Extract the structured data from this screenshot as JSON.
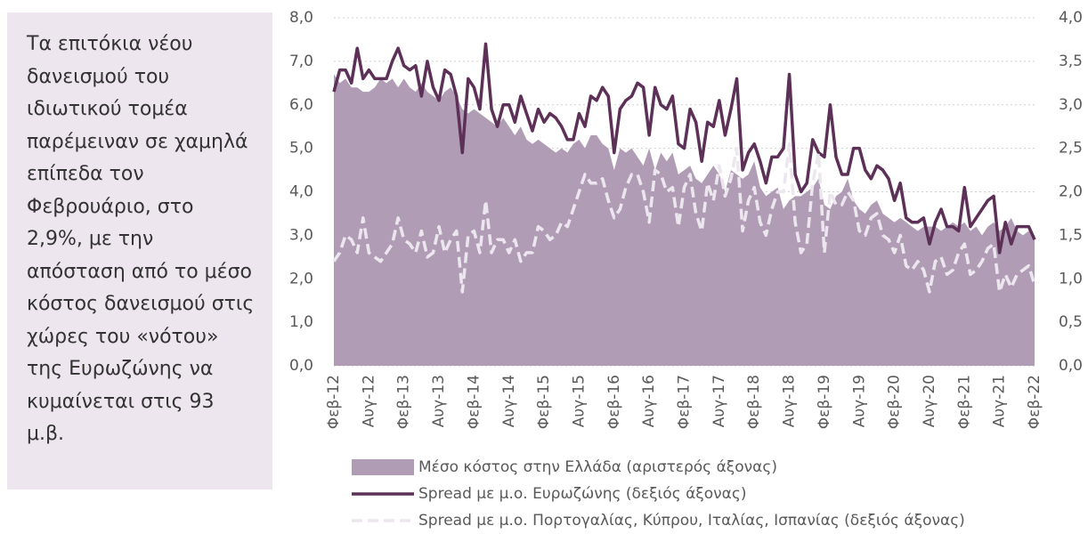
{
  "chart_data": {
    "type": "combo",
    "annotation": "Τα επιτόκια νέου δανεισμού του ιδιωτικού τομέα παρέμειναν σε χαμηλά επίπεδα τον Φεβρουάριο, στο 2,9%, με την απόσταση από το μέσο κόστος δανεισμού στις χώρες του «νότου» της Ευρωζώνης να κυμαίνεται στις 93 μ.β.",
    "categories": [
      "Φεβ-12",
      null,
      null,
      null,
      null,
      null,
      "Αυγ-12",
      null,
      null,
      null,
      null,
      null,
      "Φεβ-13",
      null,
      null,
      null,
      null,
      null,
      "Αυγ-13",
      null,
      null,
      null,
      null,
      null,
      "Φεβ-14",
      null,
      null,
      null,
      null,
      null,
      "Αυγ-14",
      null,
      null,
      null,
      null,
      null,
      "Φεβ-15",
      null,
      null,
      null,
      null,
      null,
      "Αυγ-15",
      null,
      null,
      null,
      null,
      null,
      "Φεβ-16",
      null,
      null,
      null,
      null,
      null,
      "Αυγ-16",
      null,
      null,
      null,
      null,
      null,
      "Φεβ-17",
      null,
      null,
      null,
      null,
      null,
      "Αυγ-17",
      null,
      null,
      null,
      null,
      null,
      "Φεβ-18",
      null,
      null,
      null,
      null,
      null,
      "Αυγ-18",
      null,
      null,
      null,
      null,
      null,
      "Φεβ-19",
      null,
      null,
      null,
      null,
      null,
      "Αυγ-19",
      null,
      null,
      null,
      null,
      null,
      "Φεβ-20",
      null,
      null,
      null,
      null,
      null,
      "Αυγ-20",
      null,
      null,
      null,
      null,
      null,
      "Φεβ-21",
      null,
      null,
      null,
      null,
      null,
      "Αυγ-21",
      null,
      null,
      null,
      null,
      null,
      "Φεβ-22"
    ],
    "series": [
      {
        "name": "Μέσο κόστος στην Ελλάδα (αριστερός άξονας)",
        "type": "area",
        "color": "#b09cb4",
        "values": [
          6.7,
          6.5,
          6.6,
          6.4,
          6.4,
          6.3,
          6.3,
          6.4,
          6.6,
          6.5,
          6.6,
          6.4,
          6.6,
          6.4,
          6.3,
          6.5,
          6.3,
          6.2,
          6.1,
          6.3,
          6.4,
          6.2,
          5.9,
          5.8,
          5.9,
          5.8,
          5.7,
          5.6,
          5.5,
          5.7,
          5.5,
          5.3,
          5.5,
          5.2,
          5.1,
          5.2,
          5.1,
          5.0,
          4.9,
          5.0,
          4.9,
          5.1,
          5.2,
          5.0,
          5.3,
          5.3,
          5.1,
          5.0,
          4.5,
          5.0,
          4.9,
          5.0,
          4.8,
          4.6,
          5.0,
          4.5,
          4.9,
          4.7,
          4.9,
          4.4,
          4.5,
          4.6,
          4.3,
          4.2,
          4.4,
          4.6,
          4.4,
          4.0,
          4.5,
          4.4,
          4.3,
          4.4,
          4.7,
          4.1,
          3.9,
          4.0,
          4.1,
          3.6,
          3.8,
          3.9,
          3.9,
          4.0,
          4.1,
          4.3,
          3.7,
          3.6,
          3.9,
          4.0,
          4.3,
          3.8,
          3.6,
          3.5,
          3.7,
          3.8,
          3.5,
          3.4,
          3.3,
          3.4,
          3.3,
          3.2,
          3.1,
          3.2,
          3.2,
          3.2,
          3.1,
          3.2,
          3.3,
          3.2,
          3.3,
          3.1,
          3.2,
          3.0,
          3.2,
          3.3,
          3.1,
          3.2,
          3.4,
          3.1,
          3.0,
          3.1,
          2.9
        ]
      },
      {
        "name": "Spread με μ.ο. Ευρωζώνης (δεξιός άξονας)",
        "type": "line",
        "axis": "y2",
        "color": "#5c3057",
        "values": [
          3.15,
          3.4,
          3.4,
          3.25,
          3.65,
          3.3,
          3.4,
          3.3,
          3.3,
          3.3,
          3.5,
          3.65,
          3.45,
          3.4,
          3.45,
          3.1,
          3.5,
          3.2,
          3.05,
          3.4,
          3.35,
          3.1,
          2.45,
          3.3,
          3.2,
          2.95,
          3.7,
          2.95,
          2.75,
          3.0,
          3.0,
          2.8,
          3.1,
          2.9,
          2.7,
          2.95,
          2.8,
          2.9,
          2.85,
          2.75,
          2.6,
          2.6,
          2.9,
          2.75,
          3.1,
          3.05,
          3.2,
          3.1,
          2.45,
          2.95,
          3.05,
          3.1,
          3.25,
          3.2,
          2.65,
          3.2,
          3.0,
          2.95,
          3.1,
          2.55,
          2.5,
          2.95,
          2.8,
          2.35,
          2.8,
          2.75,
          3.05,
          2.65,
          2.95,
          3.3,
          2.25,
          2.45,
          2.55,
          2.35,
          2.1,
          2.4,
          2.4,
          2.5,
          3.35,
          2.2,
          2.0,
          2.1,
          2.6,
          2.45,
          2.4,
          3.0,
          2.4,
          2.2,
          2.2,
          2.5,
          2.5,
          2.25,
          2.15,
          2.3,
          2.25,
          2.15,
          1.9,
          2.1,
          1.7,
          1.65,
          1.65,
          1.7,
          1.4,
          1.65,
          1.8,
          1.6,
          1.6,
          1.55,
          2.05,
          1.6,
          1.7,
          1.8,
          1.9,
          1.95,
          1.3,
          1.65,
          1.4,
          1.6,
          1.6,
          1.6,
          1.45
        ]
      },
      {
        "name": "Spread με μ.ο. Πορτογαλίας, Κύπρου, Ιταλίας, Ισπανίας (δεξιός άξονας)",
        "type": "line",
        "axis": "y2",
        "dashed": true,
        "color": "#ece6ee",
        "values": [
          1.2,
          1.3,
          1.5,
          1.45,
          1.3,
          1.7,
          1.3,
          1.25,
          1.2,
          1.3,
          1.4,
          1.7,
          1.45,
          1.4,
          1.3,
          1.55,
          1.25,
          1.3,
          1.6,
          1.3,
          1.45,
          1.55,
          0.85,
          1.5,
          1.55,
          1.3,
          1.9,
          1.3,
          1.45,
          1.45,
          1.3,
          1.45,
          1.2,
          1.3,
          1.3,
          1.6,
          1.55,
          1.45,
          1.5,
          1.65,
          1.6,
          1.8,
          2.0,
          2.2,
          2.1,
          2.1,
          2.15,
          1.9,
          1.7,
          1.8,
          2.05,
          2.2,
          2.2,
          2.0,
          1.65,
          2.25,
          2.2,
          2.0,
          2.05,
          1.6,
          2.05,
          2.2,
          1.75,
          1.55,
          2.1,
          1.9,
          2.3,
          1.95,
          2.15,
          2.5,
          1.55,
          1.9,
          2.05,
          1.65,
          1.5,
          1.8,
          2.0,
          2.0,
          2.55,
          1.65,
          1.3,
          1.4,
          2.1,
          2.45,
          1.3,
          2.0,
          1.85,
          1.85,
          2.0,
          1.9,
          1.55,
          1.5,
          1.7,
          1.75,
          1.5,
          1.45,
          1.3,
          1.5,
          1.15,
          1.1,
          1.2,
          1.1,
          0.85,
          1.2,
          1.25,
          1.05,
          1.1,
          1.3,
          1.4,
          1.05,
          1.1,
          1.2,
          1.35,
          1.4,
          0.85,
          1.05,
          0.9,
          1.05,
          1.1,
          1.15,
          0.93
        ]
      }
    ],
    "ylim": [
      0,
      8
    ],
    "yticks": [
      {
        "value": 0,
        "label": "0,0"
      },
      {
        "value": 1,
        "label": "1,0"
      },
      {
        "value": 2,
        "label": "2,0"
      },
      {
        "value": 3,
        "label": "3,0"
      },
      {
        "value": 4,
        "label": "4,0"
      },
      {
        "value": 5,
        "label": "5,0"
      },
      {
        "value": 6,
        "label": "6,0"
      },
      {
        "value": 7,
        "label": "7,0"
      },
      {
        "value": 8,
        "label": "8,0"
      }
    ],
    "y2lim": [
      0,
      4
    ],
    "y2ticks": [
      {
        "value": 0,
        "label": "0,0"
      },
      {
        "value": 0.5,
        "label": "0,5"
      },
      {
        "value": 1,
        "label": "1,0"
      },
      {
        "value": 1.5,
        "label": "1,5"
      },
      {
        "value": 2,
        "label": "2,0"
      },
      {
        "value": 2.5,
        "label": "2,5"
      },
      {
        "value": 3,
        "label": "3,0"
      },
      {
        "value": 3.5,
        "label": "3,5"
      },
      {
        "value": 4,
        "label": "4,0"
      }
    ],
    "grid": true,
    "legend": "bottom"
  }
}
